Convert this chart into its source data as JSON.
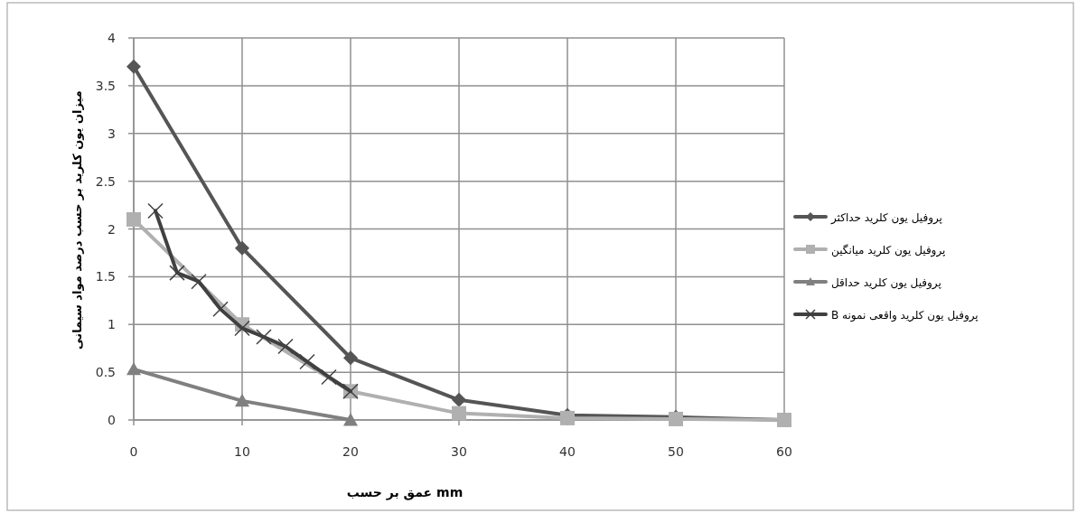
{
  "chart_data": {
    "type": "line",
    "xlabel": "عمق بر حسب mm",
    "ylabel": "میزان یون کلرید بر حسب درصد مواد سیمانی",
    "x": [
      0,
      10,
      20,
      30,
      40,
      50,
      60
    ],
    "series": [
      {
        "name": "پروفیل یون کلرید حداکثر",
        "color": "#555555",
        "marker": "diamond",
        "values": [
          3.7,
          1.8,
          0.65,
          0.21,
          0.05,
          0.03,
          0
        ]
      },
      {
        "name": "پروفیل یون کلرید میانگین",
        "color": "#b0b0b0",
        "marker": "square",
        "values": [
          2.1,
          1.0,
          0.3,
          0.07,
          0.02,
          0.01,
          0
        ]
      },
      {
        "name": "پروفیل یون کلرید حداقل",
        "color": "#808080",
        "marker": "triangle",
        "x": [
          0,
          10,
          20
        ],
        "values": [
          0.53,
          0.2,
          0
        ]
      },
      {
        "name": "پروفیل یون کلرید واقعی نمونه B",
        "color": "#404040",
        "marker": "cross",
        "x": [
          2,
          4,
          6,
          8,
          10,
          12,
          14,
          16,
          18,
          20
        ],
        "values": [
          2.19,
          1.54,
          1.45,
          1.16,
          0.96,
          0.87,
          0.77,
          0.61,
          0.45,
          0.3
        ]
      }
    ],
    "xlim": [
      0,
      60
    ],
    "xticks": [
      0,
      10,
      20,
      30,
      40,
      50,
      60
    ],
    "ylim": [
      0,
      4
    ],
    "yticks": [
      0,
      0.5,
      1,
      1.5,
      2,
      2.5,
      3,
      3.5,
      4
    ],
    "grid": true,
    "legend": "right",
    "line_style": "solid"
  }
}
